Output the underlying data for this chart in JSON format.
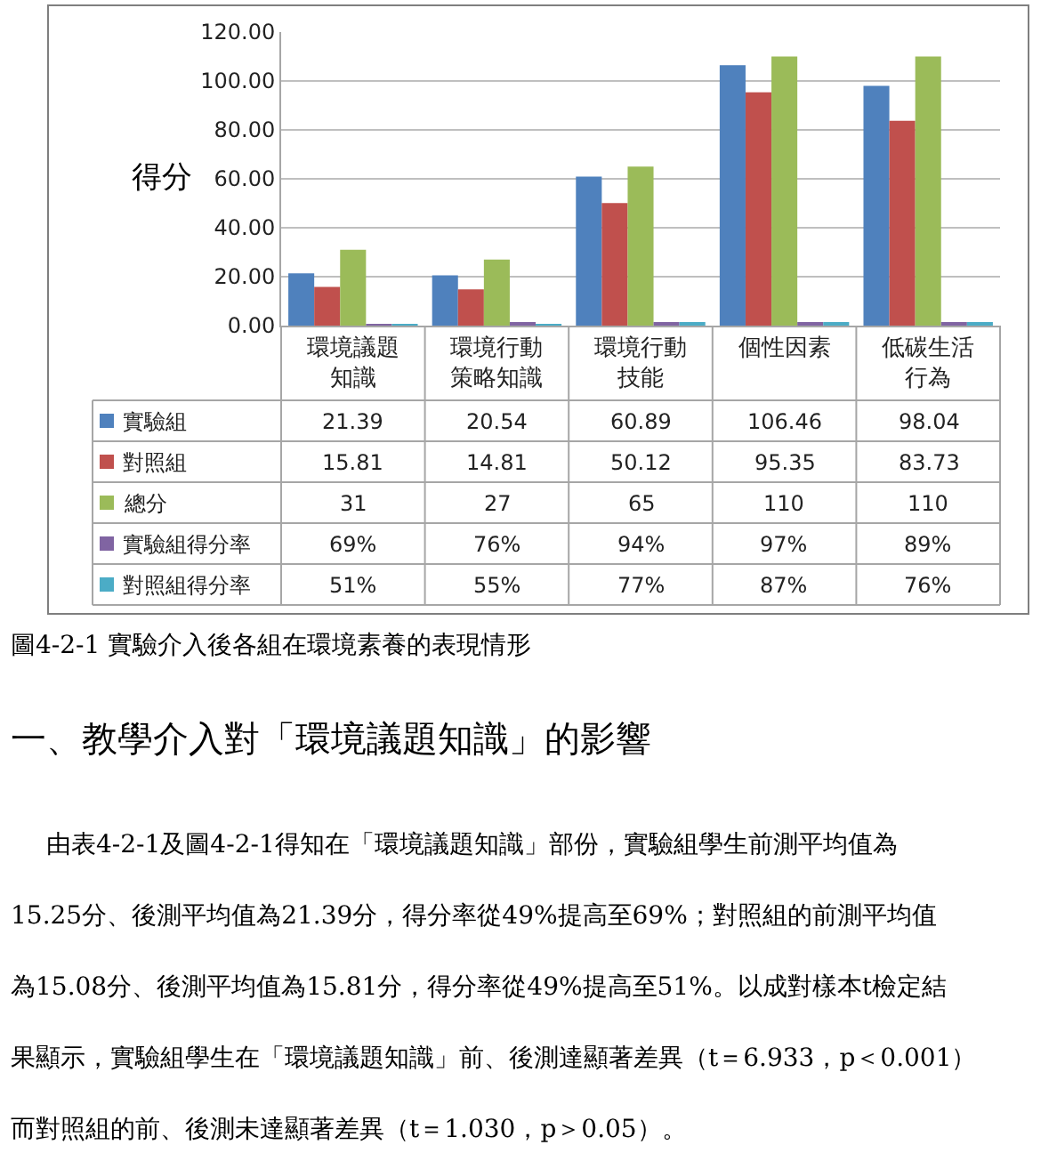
{
  "chart_data": {
    "type": "bar",
    "title": "圖4-2-1 實驗介入後各組在環境素養的表現情形",
    "ylabel": "得分",
    "categories": [
      "環境議題知識",
      "環境行動策略知識",
      "環境行動技能",
      "個性因素",
      "低碳生活行為"
    ],
    "series": [
      {
        "name": "實驗組",
        "color": "#4f81bd",
        "values": [
          21.39,
          20.54,
          60.89,
          106.46,
          98.04
        ],
        "value_labels": [
          "21.39",
          "20.54",
          "60.89",
          "106.46",
          "98.04"
        ]
      },
      {
        "name": "對照組",
        "color": "#c0504d",
        "values": [
          15.81,
          14.81,
          50.12,
          95.35,
          83.73
        ],
        "value_labels": [
          "15.81",
          "14.81",
          "50.12",
          "95.35",
          "83.73"
        ]
      },
      {
        "name": "總分",
        "color": "#9bbb59",
        "values": [
          31,
          27,
          65,
          110,
          110
        ],
        "value_labels": [
          "31",
          "27",
          "65",
          "110",
          "110"
        ]
      },
      {
        "name": "實驗組得分率",
        "color": "#8064a2",
        "values": [
          0.69,
          0.76,
          0.94,
          0.97,
          0.89
        ],
        "value_labels": [
          "69%",
          "76%",
          "94%",
          "97%",
          "89%"
        ]
      },
      {
        "name": "對照組得分率",
        "color": "#4bacc6",
        "values": [
          0.51,
          0.55,
          0.77,
          0.87,
          0.76
        ],
        "value_labels": [
          "51%",
          "55%",
          "77%",
          "87%",
          "76%"
        ]
      }
    ],
    "ylim": [
      0,
      120
    ],
    "yticks": [
      {
        "value": 0,
        "label": "0.00"
      },
      {
        "value": 20,
        "label": "20.00"
      },
      {
        "value": 40,
        "label": "40.00"
      },
      {
        "value": 60,
        "label": "60.00"
      },
      {
        "value": 80,
        "label": "80.00"
      },
      {
        "value": 100,
        "label": "100.00"
      },
      {
        "value": 120,
        "label": "120.00"
      }
    ],
    "grid": "y",
    "legend": "bottom left",
    "annotations": [
      "一、教學介入對「環境議題知識」的影響",
      "由表4-2-1及圖4-2-1得知在「環境議題知識」部份，實驗組學生前測平均值為",
      "15.25分、後測平均值為21.39分，得分率從49%提高至69%；對照組的前測平均值",
      "為15.08分、後測平均值為15.81分，得分率從49%提高至51%。以成對樣本t檢定結",
      "果顯示，實驗組學生在「環境議題知識」前、後測達顯著差異（t＝6.933，p＜0.001）",
      "而對照組的前、後測未達顯著差異（t＝1.030，p＞0.05）。"
    ]
  }
}
